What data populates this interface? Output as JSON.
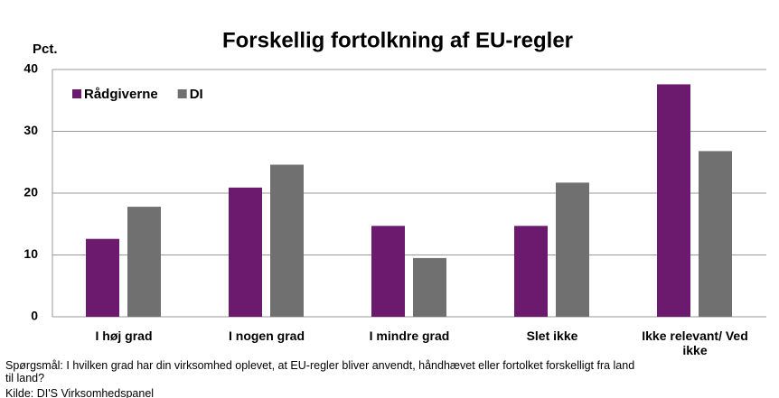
{
  "chart_data": {
    "type": "bar",
    "title": "Forskellig fortolkning af EU-regler",
    "y_label": "Pct.",
    "categories": [
      "I høj grad",
      "I nogen grad",
      "I mindre grad",
      "Slet ikke",
      "Ikke relevant/ Ved ikke"
    ],
    "series": [
      {
        "name": "Rådgiverne",
        "color": "#6b1a6e",
        "values": [
          12.6,
          20.9,
          14.7,
          14.7,
          37.6
        ]
      },
      {
        "name": "DI",
        "color": "#707070",
        "values": [
          17.8,
          24.6,
          9.5,
          21.7,
          26.8
        ]
      }
    ],
    "ylim": [
      0,
      40
    ],
    "yticks": [
      0,
      10,
      20,
      30,
      40
    ],
    "grid": true,
    "legend": "top-left",
    "notes": [
      "Spørgsmål: I hvilken grad har din virksomhed oplevet, at EU-regler bliver anvendt, håndhævet eller fortolket forskelligt fra land til land?",
      "Kilde: DI'S Virksomhedspanel"
    ]
  }
}
